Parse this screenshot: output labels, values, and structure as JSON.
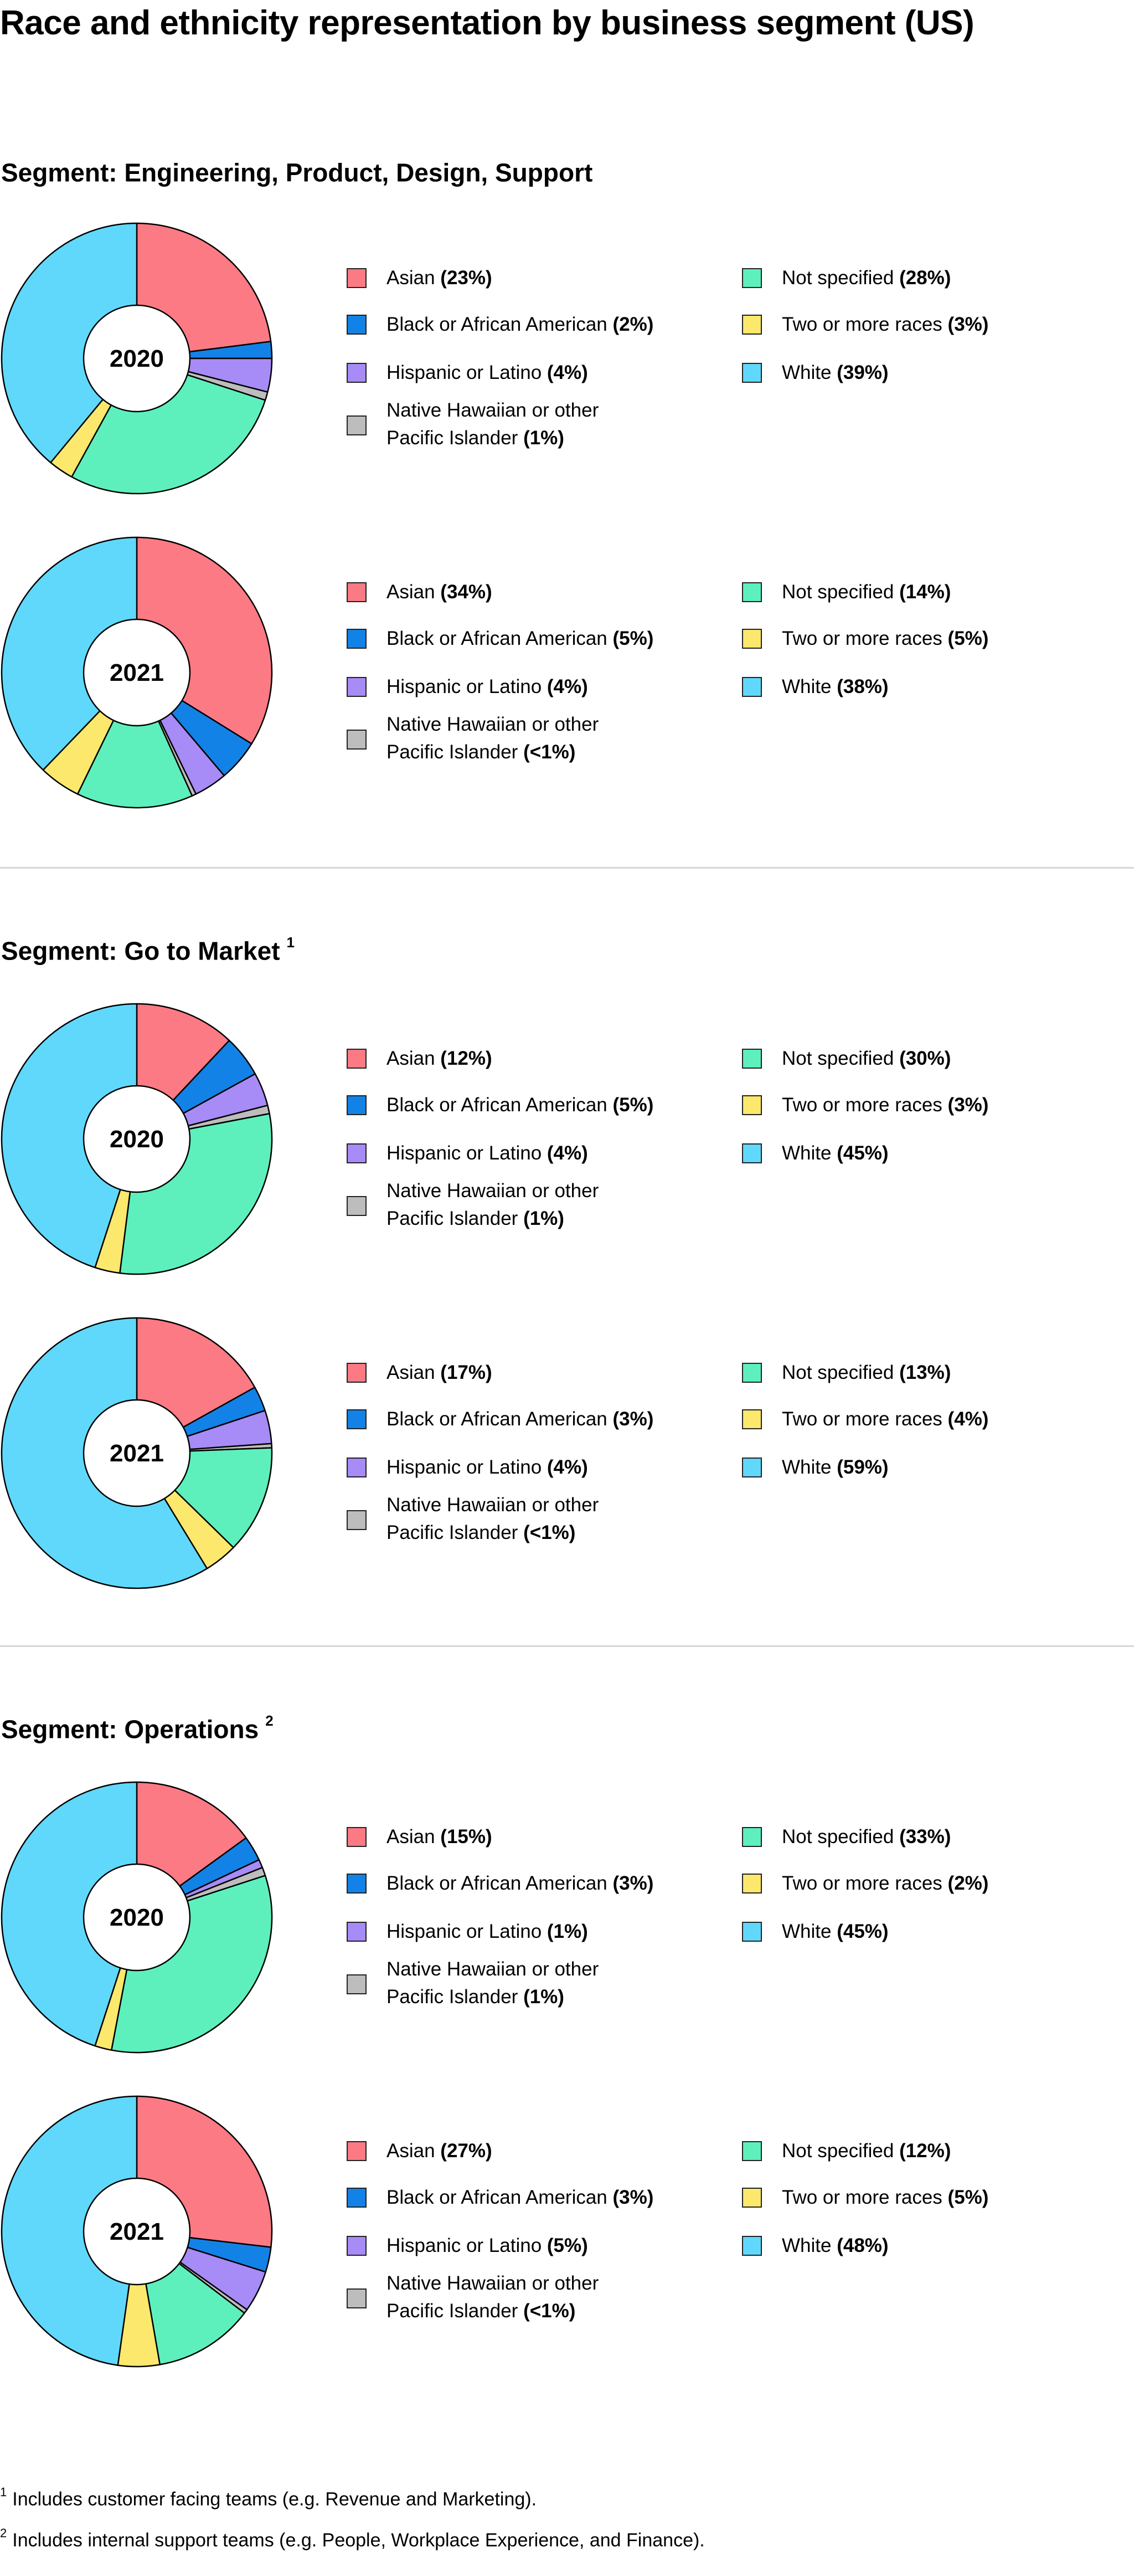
{
  "title": "Race and ethnicity representation by business segment (US)",
  "colors": {
    "Asian": "#fc7a84",
    "Black or African American": "#1382e6",
    "Hispanic or Latino": "#a78bf6",
    "Native Hawaiian or other Pacific Islander": "#bdbdbd",
    "Not specified": "#5ef0bc",
    "Two or more races": "#fce86c",
    "White": "#60d8fb"
  },
  "segments": [
    {
      "title": "Segment: Engineering, Product, Design, Support",
      "footnote_mark": "",
      "charts": [
        {
          "year": "2020",
          "legend": {
            "asian": {
              "label": "Asian",
              "pct": "(23%)"
            },
            "black": {
              "label": "Black or African American",
              "pct": "(2%)"
            },
            "hispanic": {
              "label": "Hispanic or Latino",
              "pct": "(4%)"
            },
            "nhpi": {
              "line1": "Native Hawaiian or other",
              "line2": "Pacific Islander",
              "pct": "(1%)"
            },
            "notspec": {
              "label": "Not specified",
              "pct": "(28%)"
            },
            "two": {
              "label": "Two or more races",
              "pct": "(3%)"
            },
            "white": {
              "label": "White",
              "pct": "(39%)"
            }
          }
        },
        {
          "year": "2021",
          "legend": {
            "asian": {
              "label": "Asian",
              "pct": "(34%)"
            },
            "black": {
              "label": "Black or African American",
              "pct": "(5%)"
            },
            "hispanic": {
              "label": "Hispanic or Latino",
              "pct": "(4%)"
            },
            "nhpi": {
              "line1": "Native Hawaiian or other",
              "line2": "Pacific Islander",
              "pct": "(<1%)"
            },
            "notspec": {
              "label": "Not specified",
              "pct": "(14%)"
            },
            "two": {
              "label": "Two or more races",
              "pct": "(5%)"
            },
            "white": {
              "label": "White",
              "pct": "(38%)"
            }
          }
        }
      ]
    },
    {
      "title": "Segment: Go to Market",
      "footnote_mark": "1",
      "charts": [
        {
          "year": "2020",
          "legend": {
            "asian": {
              "label": "Asian",
              "pct": "(12%)"
            },
            "black": {
              "label": "Black or African American",
              "pct": "(5%)"
            },
            "hispanic": {
              "label": "Hispanic or Latino",
              "pct": "(4%)"
            },
            "nhpi": {
              "line1": "Native Hawaiian or other",
              "line2": "Pacific Islander",
              "pct": "(1%)"
            },
            "notspec": {
              "label": "Not specified",
              "pct": "(30%)"
            },
            "two": {
              "label": "Two or more races",
              "pct": "(3%)"
            },
            "white": {
              "label": "White",
              "pct": "(45%)"
            }
          }
        },
        {
          "year": "2021",
          "legend": {
            "asian": {
              "label": "Asian",
              "pct": "(17%)"
            },
            "black": {
              "label": "Black or African American",
              "pct": "(3%)"
            },
            "hispanic": {
              "label": "Hispanic or Latino",
              "pct": "(4%)"
            },
            "nhpi": {
              "line1": "Native Hawaiian or other",
              "line2": "Pacific Islander",
              "pct": "(<1%)"
            },
            "notspec": {
              "label": "Not specified",
              "pct": "(13%)"
            },
            "two": {
              "label": "Two or more races",
              "pct": "(4%)"
            },
            "white": {
              "label": "White",
              "pct": "(59%)"
            }
          }
        }
      ]
    },
    {
      "title": "Segment: Operations",
      "footnote_mark": "2",
      "charts": [
        {
          "year": "2020",
          "legend": {
            "asian": {
              "label": "Asian",
              "pct": "(15%)"
            },
            "black": {
              "label": "Black or African American",
              "pct": "(3%)"
            },
            "hispanic": {
              "label": "Hispanic or Latino",
              "pct": "(1%)"
            },
            "nhpi": {
              "line1": "Native Hawaiian or other",
              "line2": "Pacific Islander",
              "pct": "(1%)"
            },
            "notspec": {
              "label": "Not specified",
              "pct": "(33%)"
            },
            "two": {
              "label": "Two or more races",
              "pct": "(2%)"
            },
            "white": {
              "label": "White",
              "pct": "(45%)"
            }
          }
        },
        {
          "year": "2021",
          "legend": {
            "asian": {
              "label": "Asian",
              "pct": "(27%)"
            },
            "black": {
              "label": "Black or African American",
              "pct": "(3%)"
            },
            "hispanic": {
              "label": "Hispanic or Latino",
              "pct": "(5%)"
            },
            "nhpi": {
              "line1": "Native Hawaiian or other",
              "line2": "Pacific Islander",
              "pct": "(<1%)"
            },
            "notspec": {
              "label": "Not specified",
              "pct": "(12%)"
            },
            "two": {
              "label": "Two or more races",
              "pct": "(5%)"
            },
            "white": {
              "label": "White",
              "pct": "(48%)"
            }
          }
        }
      ]
    }
  ],
  "footnotes": [
    {
      "mark": "1",
      "text": "Includes customer facing teams (e.g. Revenue and Marketing)."
    },
    {
      "mark": "2",
      "text": "Includes internal support teams (e.g. People, Workplace Experience, and Finance)."
    }
  ],
  "chart_data": [
    {
      "type": "pie",
      "title": "Segment: Engineering, Product, Design, Support",
      "center_label": "2020",
      "categories": [
        "Asian",
        "Black or African American",
        "Hispanic or Latino",
        "Native Hawaiian or other Pacific Islander",
        "Not specified",
        "Two or more races",
        "White"
      ],
      "values": [
        23,
        2,
        4,
        1,
        28,
        3,
        39
      ]
    },
    {
      "type": "pie",
      "title": "Segment: Engineering, Product, Design, Support",
      "center_label": "2021",
      "categories": [
        "Asian",
        "Black or African American",
        "Hispanic or Latino",
        "Native Hawaiian or other Pacific Islander",
        "Not specified",
        "Two or more races",
        "White"
      ],
      "values": [
        34,
        5,
        4,
        0.5,
        14,
        5,
        38
      ]
    },
    {
      "type": "pie",
      "title": "Segment: Go to Market",
      "center_label": "2020",
      "categories": [
        "Asian",
        "Black or African American",
        "Hispanic or Latino",
        "Native Hawaiian or other Pacific Islander",
        "Not specified",
        "Two or more races",
        "White"
      ],
      "values": [
        12,
        5,
        4,
        1,
        30,
        3,
        45
      ]
    },
    {
      "type": "pie",
      "title": "Segment: Go to Market",
      "center_label": "2021",
      "categories": [
        "Asian",
        "Black or African American",
        "Hispanic or Latino",
        "Native Hawaiian or other Pacific Islander",
        "Not specified",
        "Two or more races",
        "White"
      ],
      "values": [
        17,
        3,
        4,
        0.5,
        13,
        4,
        59
      ]
    },
    {
      "type": "pie",
      "title": "Segment: Operations",
      "center_label": "2020",
      "categories": [
        "Asian",
        "Black or African American",
        "Hispanic or Latino",
        "Native Hawaiian or other Pacific Islander",
        "Not specified",
        "Two or more races",
        "White"
      ],
      "values": [
        15,
        3,
        1,
        1,
        33,
        2,
        45
      ]
    },
    {
      "type": "pie",
      "title": "Segment: Operations",
      "center_label": "2021",
      "categories": [
        "Asian",
        "Black or African American",
        "Hispanic or Latino",
        "Native Hawaiian or other Pacific Islander",
        "Not specified",
        "Two or more races",
        "White"
      ],
      "values": [
        27,
        3,
        5,
        0.5,
        12,
        5,
        48
      ]
    }
  ]
}
